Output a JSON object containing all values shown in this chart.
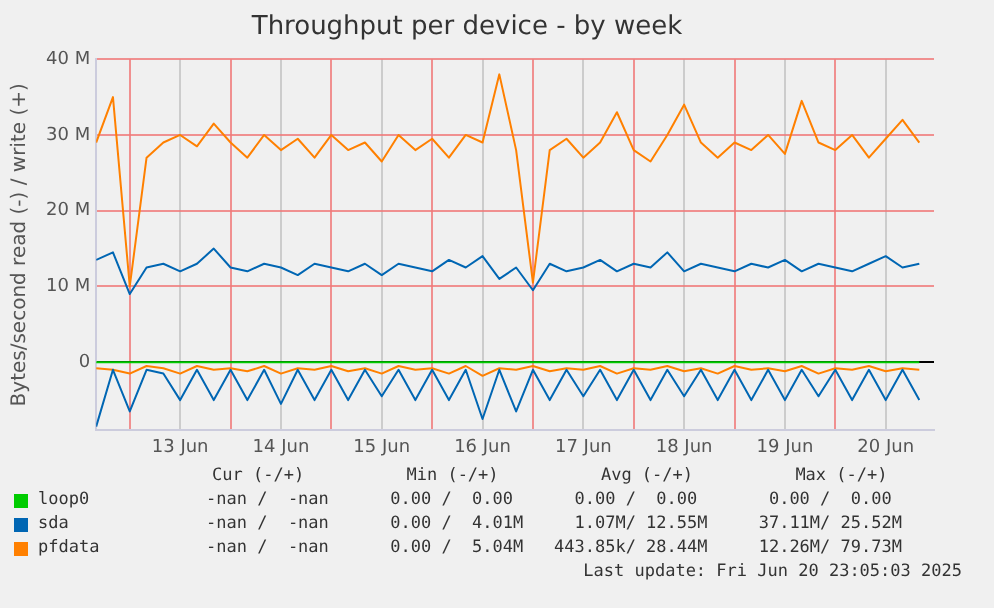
{
  "chart_data": {
    "type": "line",
    "title": "Throughput per device - by week",
    "ylabel": "Bytes/second read (-) / write (+)",
    "x": [
      "2025-06-12T16:00",
      "2025-06-12T20:00",
      "2025-06-13T00:00",
      "2025-06-13T04:00",
      "2025-06-13T08:00",
      "2025-06-13T12:00",
      "2025-06-13T16:00",
      "2025-06-13T20:00",
      "2025-06-14T00:00",
      "2025-06-14T04:00",
      "2025-06-14T08:00",
      "2025-06-14T12:00",
      "2025-06-14T16:00",
      "2025-06-14T20:00",
      "2025-06-15T00:00",
      "2025-06-15T04:00",
      "2025-06-15T08:00",
      "2025-06-15T12:00",
      "2025-06-15T16:00",
      "2025-06-15T20:00",
      "2025-06-16T00:00",
      "2025-06-16T04:00",
      "2025-06-16T08:00",
      "2025-06-16T12:00",
      "2025-06-16T16:00",
      "2025-06-16T20:00",
      "2025-06-17T00:00",
      "2025-06-17T04:00",
      "2025-06-17T08:00",
      "2025-06-17T12:00",
      "2025-06-17T16:00",
      "2025-06-17T20:00",
      "2025-06-18T00:00",
      "2025-06-18T04:00",
      "2025-06-18T08:00",
      "2025-06-18T12:00",
      "2025-06-18T16:00",
      "2025-06-18T20:00",
      "2025-06-19T00:00",
      "2025-06-19T04:00",
      "2025-06-19T08:00",
      "2025-06-19T12:00",
      "2025-06-19T16:00",
      "2025-06-19T20:00",
      "2025-06-20T00:00",
      "2025-06-20T04:00",
      "2025-06-20T08:00",
      "2025-06-20T12:00",
      "2025-06-20T16:00",
      "2025-06-20T20:00"
    ],
    "series": [
      {
        "name": "loop0",
        "color": "#00cc00",
        "x": [
          "2025-06-12T16:00",
          "2025-06-20T20:00"
        ],
        "values": [
          0,
          0
        ]
      },
      {
        "name": "sda",
        "color": "#0066b3",
        "values": [
          13.5,
          14.5,
          9,
          12.5,
          13,
          12,
          13,
          15,
          12.5,
          12,
          13,
          12.5,
          11.5,
          13,
          12.5,
          12,
          13,
          11.5,
          13,
          12.5,
          12,
          13.5,
          12.5,
          14,
          11,
          12.5,
          9.5,
          13,
          12,
          12.5,
          13.5,
          12,
          13,
          12.5,
          14.5,
          12,
          13,
          12.5,
          12,
          13,
          12.5,
          13.5,
          12,
          13,
          12.5,
          12,
          13,
          14,
          12.5,
          13
        ]
      },
      {
        "name": "pfdata",
        "color": "#ff8000",
        "values": [
          29,
          35,
          10,
          27,
          29,
          30,
          28.5,
          31.5,
          29,
          27,
          30,
          28,
          29.5,
          27,
          30,
          28,
          29,
          26.5,
          30,
          28,
          29.5,
          27,
          30,
          29,
          38,
          28,
          10.5,
          28,
          29.5,
          27,
          29,
          33,
          28,
          26.5,
          30,
          34,
          29,
          27,
          29,
          28,
          30,
          27.5,
          34.5,
          29,
          28,
          30,
          27,
          29.5,
          32,
          29
        ]
      },
      {
        "color": "#0066b3",
        "values": [
          -8.5,
          -1,
          -6.5,
          -1,
          -1.5,
          -5,
          -1,
          -5,
          -1,
          -5,
          -1,
          -5.5,
          -1,
          -5,
          -1,
          -5,
          -1,
          -4.5,
          -1,
          -5,
          -1,
          -5,
          -1,
          -7.5,
          -1,
          -6.5,
          -1,
          -5,
          -1,
          -4.5,
          -1,
          -5,
          -1,
          -5,
          -1,
          -4.5,
          -1,
          -5,
          -1,
          -5,
          -1,
          -5,
          -1,
          -4.5,
          -1,
          -5,
          -1,
          -5,
          -1,
          -5
        ]
      },
      {
        "color": "#ff8000",
        "values": [
          -0.8,
          -1,
          -1.5,
          -0.5,
          -0.8,
          -1.5,
          -0.5,
          -1,
          -0.8,
          -1.2,
          -0.5,
          -1.5,
          -0.8,
          -1,
          -0.5,
          -1.2,
          -0.8,
          -1.5,
          -0.5,
          -1,
          -0.8,
          -1.5,
          -0.5,
          -1.8,
          -0.8,
          -1,
          -0.5,
          -1.2,
          -0.8,
          -1,
          -0.5,
          -1.5,
          -0.8,
          -1,
          -0.5,
          -1.2,
          -0.8,
          -1.5,
          -0.5,
          -1,
          -0.8,
          -1.2,
          -0.5,
          -1.5,
          -0.8,
          -1,
          -0.5,
          -1.2,
          -0.8,
          -1
        ]
      }
    ],
    "xlim": [
      "2025-06-12T16:00",
      "2025-06-20T23:30"
    ],
    "xticks": [
      {
        "value": "2025-06-13T00:00",
        "label": null
      },
      {
        "value": "2025-06-13T12:00",
        "label": "13 Jun"
      },
      {
        "value": "2025-06-14T00:00",
        "label": null
      },
      {
        "value": "2025-06-14T12:00",
        "label": "14 Jun"
      },
      {
        "value": "2025-06-15T00:00",
        "label": null
      },
      {
        "value": "2025-06-15T12:00",
        "label": "15 Jun"
      },
      {
        "value": "2025-06-16T00:00",
        "label": null
      },
      {
        "value": "2025-06-16T12:00",
        "label": "16 Jun"
      },
      {
        "value": "2025-06-17T00:00",
        "label": null
      },
      {
        "value": "2025-06-17T12:00",
        "label": "17 Jun"
      },
      {
        "value": "2025-06-18T00:00",
        "label": null
      },
      {
        "value": "2025-06-18T12:00",
        "label": "18 Jun"
      },
      {
        "value": "2025-06-19T00:00",
        "label": null
      },
      {
        "value": "2025-06-19T12:00",
        "label": "19 Jun"
      },
      {
        "value": "2025-06-20T00:00",
        "label": null
      },
      {
        "value": "2025-06-20T12:00",
        "label": "20 Jun"
      }
    ],
    "ylim": [
      -9,
      40
    ],
    "yticks": [
      0,
      {
        "value": 10,
        "label": "10 M"
      },
      {
        "value": 20,
        "label": "20 M"
      },
      {
        "value": 30,
        "label": "30 M"
      },
      {
        "value": 40,
        "label": "40 M"
      }
    ],
    "grid": true,
    "legend": "bottom",
    "annotations": [
      "Cur (-/+)          Min (-/+)          Avg (-/+)          Max (-/+)",
      "-nan /  -nan      0.00 /  0.00      0.00 /  0.00       0.00 /  0.00",
      "-nan /  -nan      0.00 /  4.01M     1.07M/ 12.55M     37.11M/ 25.52M",
      "-nan /  -nan      0.00 /  5.04M   443.85k/ 28.44M     12.26M/ 79.73M",
      "Last update: Fri Jun 20 23:05:03 2025"
    ]
  }
}
